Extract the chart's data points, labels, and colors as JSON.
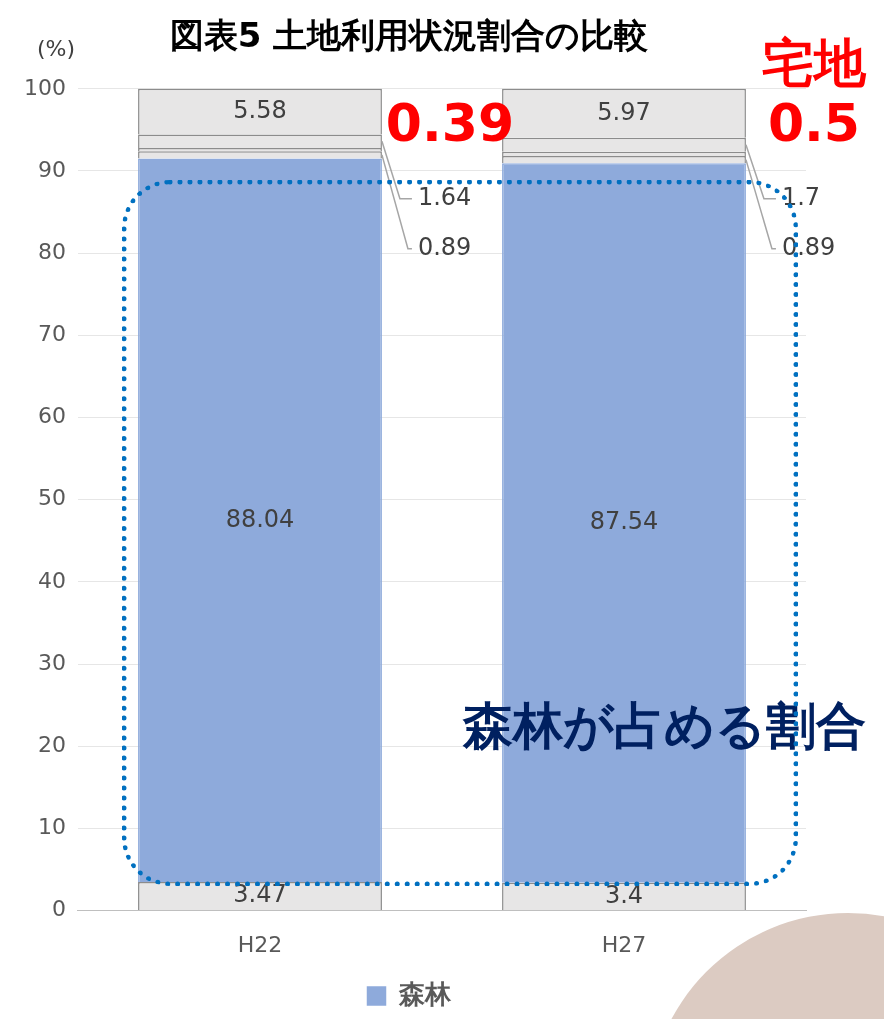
{
  "chart_data": {
    "type": "bar",
    "title": "図表5 土地利用状況割合の比較",
    "ylabel": "(%)",
    "categories": [
      "H22",
      "H27"
    ],
    "stacked": true,
    "ylim": [
      0,
      100
    ],
    "yticks": [
      0,
      10,
      20,
      30,
      40,
      50,
      60,
      70,
      80,
      90,
      100
    ],
    "grid": "y",
    "legend": "bottom",
    "series": [
      {
        "color": "#e7e6e6",
        "values": [
          3.47,
          3.4
        ],
        "value_labels": [
          "3.47",
          "3.4"
        ]
      },
      {
        "name": "森林",
        "color": "#8eaadb",
        "values": [
          88.04,
          87.54
        ],
        "value_labels": [
          "88.04",
          "87.54"
        ]
      },
      {
        "color": "#e7e6e6",
        "values": [
          0.89,
          0.89
        ],
        "value_labels": [
          "0.89",
          "0.89"
        ]
      },
      {
        "color": "#e7e6e6",
        "values": [
          0.39,
          0.5
        ]
      },
      {
        "color": "#e7e6e6",
        "values": [
          1.64,
          1.7
        ],
        "value_labels": [
          "1.64",
          "1.7"
        ]
      },
      {
        "color": "#e7e6e6",
        "values": [
          5.58,
          5.97
        ],
        "value_labels": [
          "5.58",
          "5.97"
        ]
      }
    ],
    "annotations": [
      {
        "text": "0.39",
        "x": "H22",
        "y": 92.6
      },
      {
        "text": "宅地",
        "x": "H27",
        "y": 92.6
      },
      {
        "text": "0.5",
        "x": "H27",
        "y": 92.6
      },
      "森林が占める割合"
    ]
  }
}
